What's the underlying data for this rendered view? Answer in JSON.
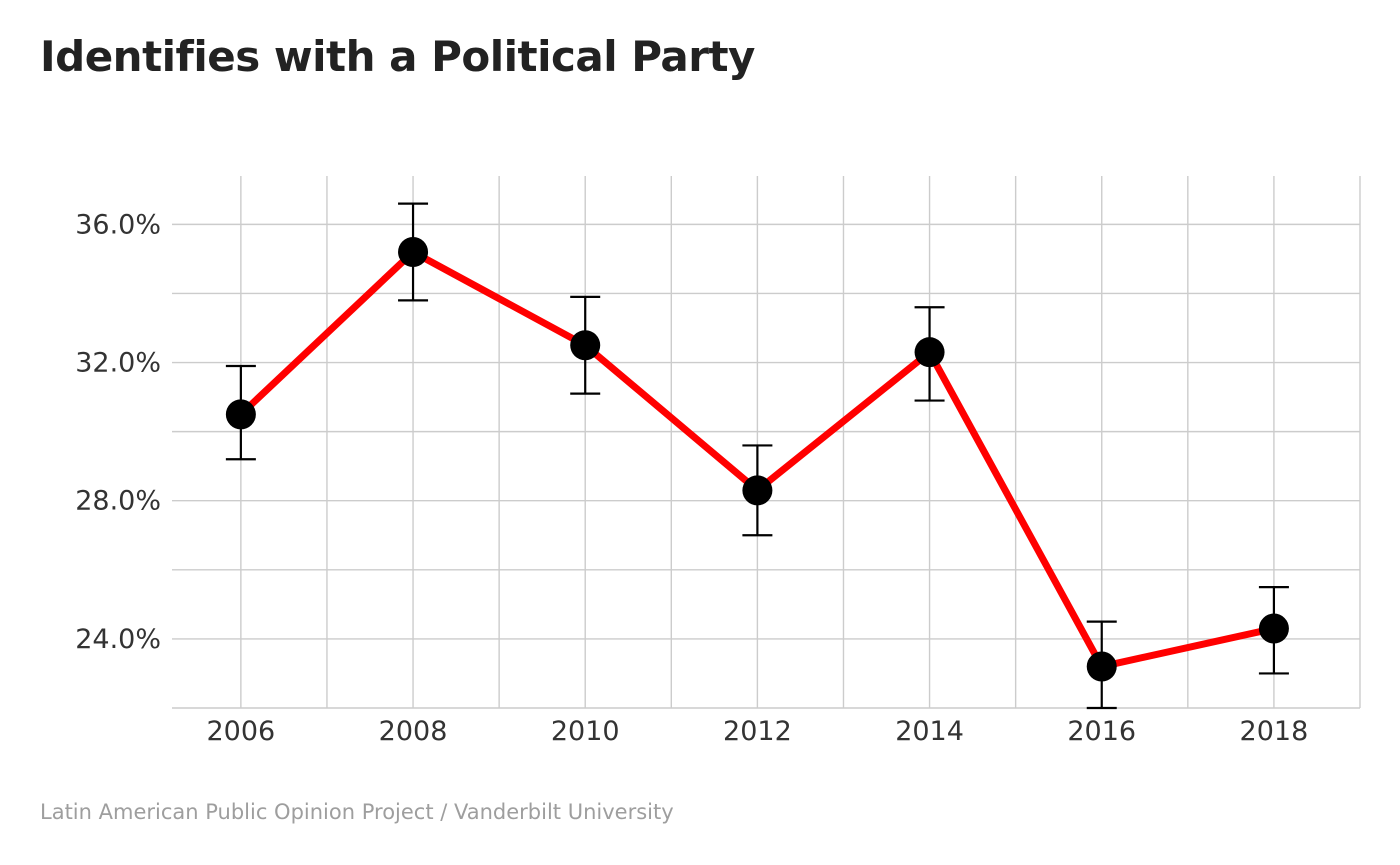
{
  "chart_data": {
    "type": "line",
    "title": "Identifies with a Political Party",
    "caption": "Latin American Public Opinion Project / Vanderbilt University",
    "xlabel": "",
    "ylabel": "",
    "x": [
      2006,
      2008,
      2010,
      2012,
      2014,
      2016,
      2018
    ],
    "x_tick_labels": [
      "2006",
      "2008",
      "2010",
      "2012",
      "2014",
      "2016",
      "2018"
    ],
    "xlim": [
      2005.2,
      2019.0
    ],
    "ylim": [
      22.0,
      37.4
    ],
    "y_ticks": [
      24,
      28,
      32,
      36
    ],
    "y_tick_labels": [
      "24.0%",
      "28.0%",
      "32.0%",
      "36.0%"
    ],
    "grid": true,
    "legend": "none",
    "series": [
      {
        "values": [
          30.5,
          35.2,
          32.5,
          28.3,
          32.3,
          23.2,
          24.3
        ],
        "ci_low": [
          29.2,
          33.8,
          31.1,
          27.0,
          30.9,
          22.0,
          23.0
        ],
        "ci_high": [
          31.9,
          36.6,
          33.9,
          29.6,
          33.6,
          24.5,
          25.5
        ],
        "line_color": "#ff0000",
        "marker_color": "#000000",
        "error_bar_color": "#000000"
      }
    ]
  }
}
